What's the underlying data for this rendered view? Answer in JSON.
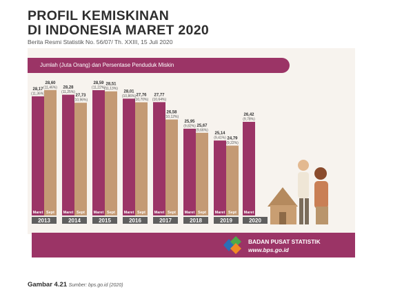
{
  "header": {
    "title_line1": "PROFIL KEMISKINAN",
    "title_line2": "DI INDONESIA MARET 2020",
    "subtitle": "Berita Resmi Statistik No. 56/07/ Th. XXIII, 15 Juli 2020"
  },
  "banner": {
    "label": "Jumlah (Juta Orang) dan Persentase Penduduk Miskin"
  },
  "footer": {
    "org": "BADAN PUSAT STATISTIK",
    "url": "www.bps.go.id"
  },
  "caption": {
    "figure": "Gambar 4.21",
    "source": "Sumber: bps.go.id (2020)"
  },
  "colors": {
    "maret": "#9b3466",
    "sept": "#c49a74",
    "year_band": "#5f5f5f",
    "banner": "#9b3466"
  },
  "chart_data": {
    "type": "bar",
    "title": "Jumlah (Juta Orang) dan Persentase Penduduk Miskin",
    "ylim": [
      0,
      30
    ],
    "years": [
      "2013",
      "2014",
      "2015",
      "2016",
      "2017",
      "2018",
      "2019",
      "2020"
    ],
    "series": [
      {
        "name": "Maret",
        "values": [
          28.17,
          28.28,
          28.59,
          28.01,
          27.77,
          25.95,
          25.14,
          26.42
        ],
        "value_labels": [
          "28,17",
          "28,28",
          "28,59",
          "28,01",
          "27,77",
          "25,95",
          "25,14",
          "26,42"
        ],
        "percent_labels": [
          "(11,36%)",
          "(11,25%)",
          "(11,22%)",
          "(10,86%)",
          "(10,64%)",
          "(9,82%)",
          "(9,41%)",
          "(9,78%)"
        ]
      },
      {
        "name": "Sept",
        "values": [
          28.6,
          27.73,
          28.51,
          27.76,
          26.58,
          25.67,
          24.79,
          null
        ],
        "value_labels": [
          "28,60",
          "27,73",
          "28,51",
          "27,76",
          "26,58",
          "25,67",
          "24,79",
          null
        ],
        "percent_labels": [
          "(11,46%)",
          "(10,96%)",
          "(11,13%)",
          "(10,70%)",
          "(10,12%)",
          "(9,66%)",
          "(9,22%)",
          null
        ]
      }
    ]
  }
}
